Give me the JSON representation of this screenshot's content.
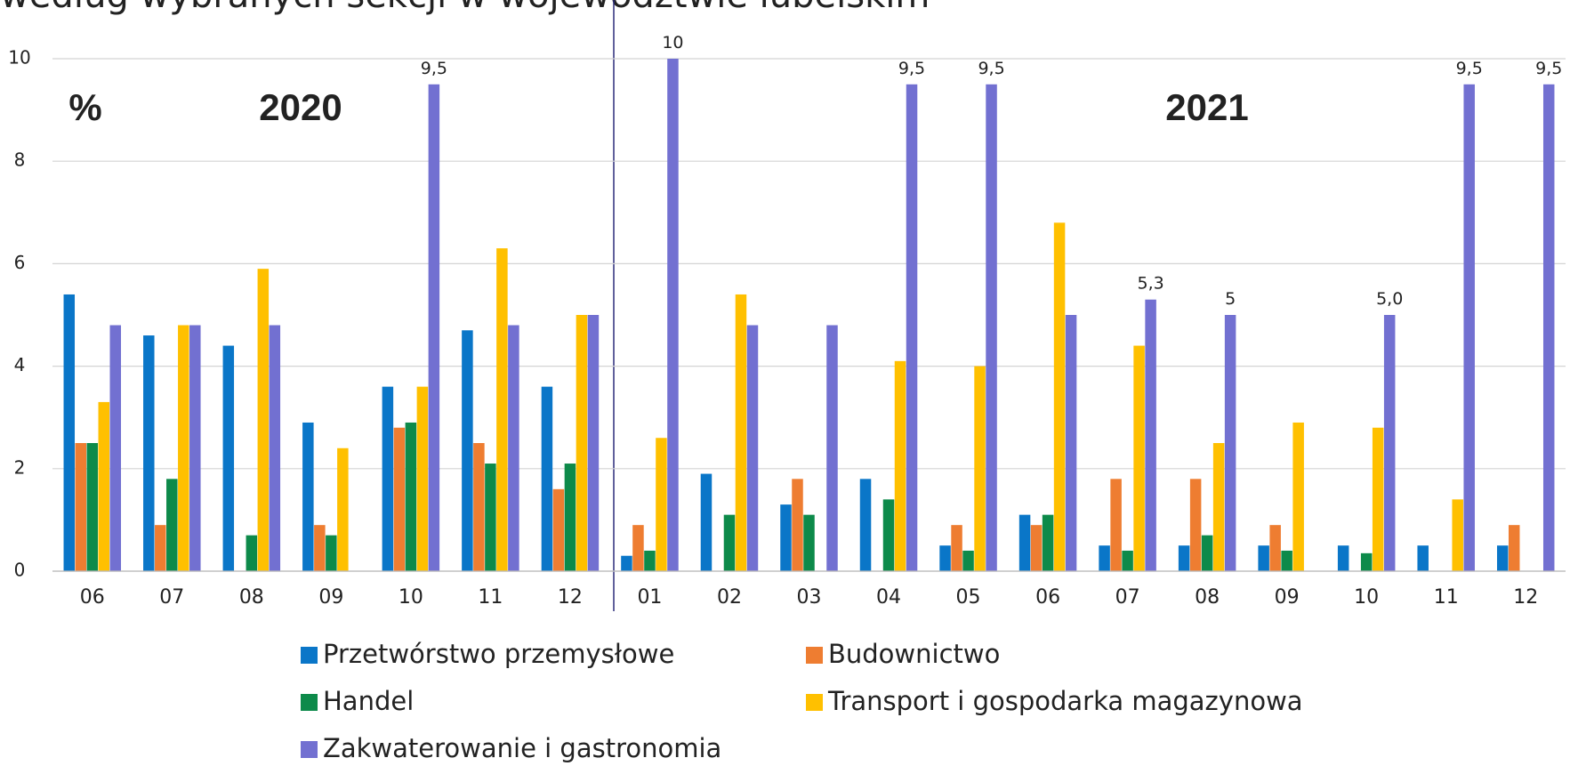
{
  "chart_data": {
    "type": "bar",
    "title": "według wybranych sekcji w województwie lubelskim",
    "annotations": [
      "%",
      "2020",
      "2021"
    ],
    "categories": [
      "06",
      "07",
      "08",
      "09",
      "10",
      "11",
      "12",
      "01",
      "02",
      "03",
      "04",
      "05",
      "06",
      "07",
      "08",
      "09",
      "10",
      "11",
      "12"
    ],
    "series": [
      {
        "name": "Przetwórstwo przemysłowe",
        "color": "#0a76c8",
        "values": [
          5.4,
          4.6,
          4.4,
          2.9,
          3.6,
          4.7,
          3.6,
          0.3,
          1.9,
          1.3,
          1.8,
          0.5,
          1.1,
          0.5,
          0.5,
          0.5,
          0.5,
          0.5,
          0.5
        ]
      },
      {
        "name": "Budownictwo",
        "color": "#ee7d31",
        "values": [
          2.5,
          0.9,
          null,
          0.9,
          2.8,
          2.5,
          1.6,
          0.9,
          null,
          1.8,
          null,
          0.9,
          0.9,
          1.8,
          1.8,
          0.9,
          null,
          null,
          0.9
        ]
      },
      {
        "name": "Handel",
        "color": "#0d8a4a",
        "values": [
          2.5,
          1.8,
          0.7,
          0.7,
          2.9,
          2.1,
          2.1,
          0.4,
          1.1,
          1.1,
          1.4,
          0.4,
          1.1,
          0.4,
          0.7,
          0.4,
          0.35,
          null,
          null
        ]
      },
      {
        "name": "Transport i gospodarka magazynowa",
        "color": "#ffc000",
        "values": [
          3.3,
          4.8,
          5.9,
          2.4,
          3.6,
          6.3,
          5.0,
          2.6,
          5.4,
          null,
          4.1,
          4.0,
          6.8,
          4.4,
          2.5,
          2.9,
          2.8,
          1.4,
          null
        ]
      },
      {
        "name": "Zakwaterowanie i gastronomia",
        "color": "#7270d1",
        "values": [
          4.8,
          4.8,
          4.8,
          null,
          9.5,
          4.8,
          5.0,
          10,
          4.8,
          4.8,
          9.5,
          9.5,
          5.0,
          5.3,
          5.0,
          null,
          5.0,
          9.5,
          9.5
        ],
        "value_labels": [
          null,
          null,
          null,
          null,
          "9,5",
          null,
          null,
          "10",
          null,
          null,
          "9,5",
          "9,5",
          null,
          "5,3",
          "5",
          null,
          "5,0",
          "9,5",
          "9,5"
        ]
      }
    ],
    "ylim": [
      0,
      10
    ],
    "yticks": [
      0,
      2,
      4,
      6,
      8,
      10
    ],
    "grid": true
  }
}
